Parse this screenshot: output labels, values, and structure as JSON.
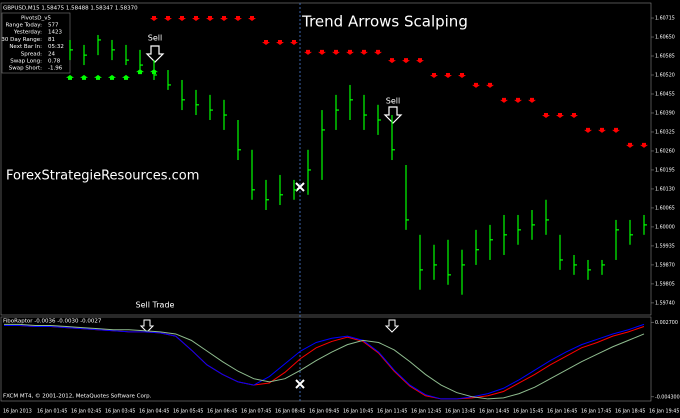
{
  "chart_data": [
    {
      "type": "ohlc",
      "title": "Trend Arrows Scalping",
      "symbol_header": "GBPUSD,M15  1.58475 1.58488 1.58347 1.58370",
      "watermark": "ForexStrategieResources.com",
      "annotations": [
        "Sell",
        "Sell",
        "Sell Trade"
      ],
      "info_box": {
        "title": "PivotsD_v5",
        "rows": [
          [
            "Range Today:",
            "577"
          ],
          [
            "Yesterday:",
            "1423"
          ],
          [
            "30 Day Range:",
            "81"
          ],
          [
            "Next Bar In:",
            "05:32"
          ],
          [
            "Spread:",
            "24"
          ],
          [
            "Swap Long:",
            "0.78"
          ],
          [
            "Swap Short:",
            "-1.96"
          ]
        ]
      },
      "color": "#00ff00",
      "high": [
        1.6064,
        1.60623,
        1.60657,
        1.6064,
        1.60623,
        1.60606,
        1.60571,
        1.60537,
        1.60503,
        1.60469,
        1.60452,
        1.60435,
        1.60366,
        1.60264,
        1.60161,
        1.60178,
        1.60161,
        1.60264,
        1.604,
        1.60452,
        1.60486,
        1.60452,
        1.60418,
        1.60383,
        1.60212,
        1.59973,
        1.59939,
        1.59956,
        1.59922,
        1.5999,
        1.60007,
        1.60041,
        1.60041,
        1.60058,
        1.60093,
        1.59973,
        1.59904,
        1.59887,
        1.59887,
        1.60024,
        1.60024,
        1.60041
      ],
      "low": [
        1.60571,
        1.60554,
        1.60588,
        1.60571,
        1.60554,
        1.60537,
        1.60503,
        1.60469,
        1.604,
        1.60383,
        1.60366,
        1.60332,
        1.60229,
        1.60093,
        1.60058,
        1.60075,
        1.60093,
        1.6011,
        1.60161,
        1.60332,
        1.60366,
        1.60332,
        1.60315,
        1.60229,
        1.5999,
        1.59785,
        1.59819,
        1.59802,
        1.59768,
        1.5987,
        1.59887,
        1.59904,
        1.59939,
        1.59956,
        1.59973,
        1.59853,
        1.59836,
        1.59819,
        1.59836,
        1.59887,
        1.59939,
        1.59973
      ],
      "close": [
        1.60606,
        1.60588,
        1.6064,
        1.60606,
        1.60571,
        1.60554,
        1.6052,
        1.60486,
        1.60435,
        1.60418,
        1.604,
        1.60383,
        1.60264,
        1.60127,
        1.60093,
        1.6011,
        1.60127,
        1.60195,
        1.60332,
        1.604,
        1.60435,
        1.60383,
        1.60366,
        1.60264,
        1.60024,
        1.59853,
        1.5987,
        1.59836,
        1.5987,
        1.59922,
        1.59956,
        1.59973,
        1.5999,
        1.60007,
        1.60024,
        1.59887,
        1.5987,
        1.59853,
        1.5987,
        1.5999,
        1.59973,
        1.60007
      ],
      "sell_stops": {
        "color": "#ff0000",
        "values": [
          null,
          null,
          null,
          null,
          null,
          null,
          1.60715,
          1.60715,
          1.60715,
          1.60715,
          1.60715,
          1.60715,
          1.60715,
          1.60715,
          1.60633,
          1.60633,
          1.60633,
          1.60599,
          1.60599,
          1.60599,
          1.60599,
          1.60599,
          1.60599,
          1.60571,
          1.60571,
          1.60571,
          1.6052,
          1.6052,
          1.6052,
          1.60486,
          1.60486,
          1.60435,
          1.60435,
          1.60435,
          1.60383,
          1.60383,
          1.60383,
          1.60332,
          1.60332,
          1.60332,
          1.60281,
          1.60281
        ]
      },
      "buy_stops": {
        "color": "#00ff00",
        "values": [
          1.6051,
          1.6051,
          1.6051,
          1.6051,
          1.6051,
          1.6053,
          1.6053,
          null,
          null,
          null,
          null,
          null,
          null,
          null,
          null,
          null,
          null,
          null,
          null,
          null,
          null,
          null,
          null,
          null,
          null,
          null,
          null,
          null,
          null,
          null,
          null,
          null,
          null,
          null,
          null,
          null,
          null,
          null,
          null,
          null,
          null,
          null
        ]
      },
      "ylim": [
        1.59702,
        1.60763
      ],
      "yticks": [
        1.60715,
        {
          "value": 1.6065,
          "label": "1.60650"
        },
        1.60585,
        {
          "value": 1.6052,
          "label": "1.60520"
        },
        1.60455,
        {
          "value": 1.6039,
          "label": "1.60390"
        },
        1.60325,
        {
          "value": 1.6026,
          "label": "1.60260"
        },
        1.60195,
        {
          "value": 1.6013,
          "label": "1.60130"
        },
        1.60065,
        {
          "value": 1.6,
          "label": "1.60000"
        },
        1.59935,
        {
          "value": 1.5987,
          "label": "1.59870"
        },
        1.59805,
        {
          "value": 1.5974,
          "label": "1.59740"
        }
      ],
      "x_labels": [
        "16 Jan 2013",
        "16 Jan 01:45",
        "16 Jan 02:45",
        "16 Jan 03:45",
        "16 Jan 04:45",
        "16 Jan 05:45",
        "16 Jan 06:45",
        "16 Jan 07:45",
        "16 Jan 08:45",
        "16 Jan 09:45",
        "16 Jan 10:45",
        "16 Jan 11:45",
        "16 Jan 12:45",
        "16 Jan 13:45",
        "16 Jan 14:45",
        "16 Jan 15:45",
        "16 Jan 16:45",
        "16 Jan 17:45",
        "16 Jan 18:45",
        "16 Jan 19:45"
      ]
    },
    {
      "type": "line",
      "title": "FiboRaptor -0.0036 -0.0030 -0.0027",
      "footer": "FXCM MT4, © 2001-2012, MetaQuotes Software Corp.",
      "series": [
        {
          "color": "#ff0000",
          "values": [
            0.0024,
            0.0024,
            0.0023,
            0.0023,
            0.0022,
            0.0021,
            0.002,
            0.0019,
            0.0018,
            0.0018,
            0.0017,
            0.0014,
            0.0001,
            -0.0013,
            -0.0022,
            -0.0029,
            -0.0032,
            -0.003,
            -0.002,
            -0.0007,
            0.0003,
            0.0009,
            0.0013,
            0.0009,
            -0.0002,
            -0.0019,
            -0.0033,
            -0.0042,
            -0.0045,
            -0.0045,
            -0.0044,
            -0.0042,
            -0.0038,
            -0.003,
            -0.0022,
            -0.0013,
            -0.0005,
            0.0003,
            0.0008,
            0.0014,
            0.0018,
            0.0023
          ]
        },
        {
          "color": "#0000ff",
          "values": [
            0.0024,
            0.0024,
            0.0023,
            0.0023,
            0.0022,
            0.0021,
            0.002,
            0.0019,
            0.0018,
            0.0018,
            0.0017,
            0.0014,
            0.0001,
            -0.0013,
            -0.0022,
            -0.0029,
            -0.0032,
            -0.0024,
            -0.0012,
            0,
            0.0008,
            0.0012,
            0.0014,
            0.001,
            -0.0001,
            -0.0018,
            -0.0032,
            -0.0041,
            -0.0045,
            -0.0045,
            -0.0043,
            -0.004,
            -0.0035,
            -0.0027,
            -0.0018,
            -0.0009,
            -0.0001,
            0.0006,
            0.0011,
            0.0016,
            0.002,
            0.0025
          ]
        },
        {
          "color": "#8fbc8f",
          "values": [
            0.0025,
            0.0025,
            0.0024,
            0.0024,
            0.0023,
            0.0022,
            0.0021,
            0.002,
            0.002,
            0.0019,
            0.0018,
            0.0016,
            0.001,
            0,
            -0.001,
            -0.0019,
            -0.0026,
            -0.0029,
            -0.0026,
            -0.0018,
            -0.0009,
            -0.0001,
            0.0006,
            0.001,
            0.0008,
            0.0001,
            -0.001,
            -0.0022,
            -0.0032,
            -0.0039,
            -0.0043,
            -0.0045,
            -0.0044,
            -0.004,
            -0.0034,
            -0.0026,
            -0.0018,
            -0.001,
            -0.0003,
            0.0004,
            0.001,
            0.0016
          ]
        }
      ],
      "ylim": [
        -0.0046,
        0.0031
      ],
      "yticks": [
        {
          "value": 0.0027,
          "label": "0.002700"
        },
        {
          "value": -0.0043,
          "label": "-0.004300"
        }
      ]
    }
  ]
}
